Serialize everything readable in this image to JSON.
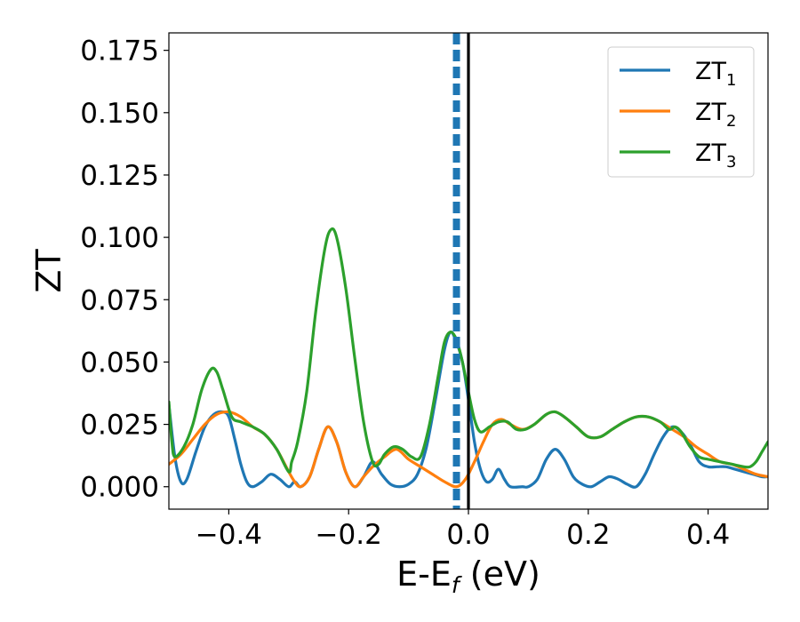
{
  "chart_data": {
    "type": "line",
    "xlabel": "E-E",
    "xlabel_subscript": "f",
    "xlabel_unit": " (eV)",
    "ylabel": "ZT",
    "xlim": [
      -0.5,
      0.5
    ],
    "ylim": [
      -0.009,
      0.182
    ],
    "xticks": [
      -0.4,
      -0.2,
      0.0,
      0.2,
      0.4
    ],
    "xtick_labels": [
      "−0.4",
      "−0.2",
      "0.0",
      "0.2",
      "0.4"
    ],
    "yticks": [
      0.0,
      0.025,
      0.05,
      0.075,
      0.1,
      0.125,
      0.15,
      0.175
    ],
    "ytick_labels": [
      "0.000",
      "0.025",
      "0.050",
      "0.075",
      "0.100",
      "0.125",
      "0.150",
      "0.175"
    ],
    "grid": false,
    "legend_position": "top-right",
    "vlines": [
      {
        "x": -0.02,
        "color": "#1f77b4",
        "style": "dashed"
      },
      {
        "x": 0.0,
        "color": "#000000",
        "style": "solid"
      }
    ],
    "series": [
      {
        "name": "ZT",
        "subscript": "1",
        "color": "#1f77b4",
        "points": [
          [
            -0.5,
            0.033
          ],
          [
            -0.49,
            0.012
          ],
          [
            -0.48,
            0.002
          ],
          [
            -0.47,
            0.003
          ],
          [
            -0.455,
            0.014
          ],
          [
            -0.44,
            0.024
          ],
          [
            -0.425,
            0.029
          ],
          [
            -0.41,
            0.03
          ],
          [
            -0.4,
            0.028
          ],
          [
            -0.39,
            0.019
          ],
          [
            -0.38,
            0.009
          ],
          [
            -0.37,
            0.002
          ],
          [
            -0.36,
            0.0
          ],
          [
            -0.345,
            0.002
          ],
          [
            -0.33,
            0.005
          ],
          [
            -0.315,
            0.003
          ],
          [
            -0.3,
            0.0
          ],
          [
            -0.29,
            0.002
          ],
          [
            -0.28,
            0.0
          ],
          [
            -0.265,
            0.004
          ],
          [
            -0.25,
            0.015
          ],
          [
            -0.235,
            0.024
          ],
          [
            -0.22,
            0.018
          ],
          [
            -0.205,
            0.006
          ],
          [
            -0.19,
            0.0
          ],
          [
            -0.175,
            0.004
          ],
          [
            -0.16,
            0.01
          ],
          [
            -0.145,
            0.005
          ],
          [
            -0.13,
            0.001
          ],
          [
            -0.115,
            0.0
          ],
          [
            -0.1,
            0.001
          ],
          [
            -0.085,
            0.005
          ],
          [
            -0.07,
            0.016
          ],
          [
            -0.055,
            0.035
          ],
          [
            -0.04,
            0.055
          ],
          [
            -0.03,
            0.062
          ],
          [
            -0.02,
            0.058
          ],
          [
            -0.01,
            0.05
          ],
          [
            0.0,
            0.035
          ],
          [
            0.01,
            0.018
          ],
          [
            0.02,
            0.007
          ],
          [
            0.03,
            0.002
          ],
          [
            0.04,
            0.003
          ],
          [
            0.05,
            0.007
          ],
          [
            0.06,
            0.003
          ],
          [
            0.07,
            0.0
          ],
          [
            0.09,
            0.0
          ],
          [
            0.1,
            0.0
          ],
          [
            0.115,
            0.003
          ],
          [
            0.13,
            0.011
          ],
          [
            0.145,
            0.015
          ],
          [
            0.16,
            0.011
          ],
          [
            0.175,
            0.004
          ],
          [
            0.19,
            0.001
          ],
          [
            0.205,
            0.0
          ],
          [
            0.22,
            0.002
          ],
          [
            0.235,
            0.004
          ],
          [
            0.25,
            0.003
          ],
          [
            0.265,
            0.001
          ],
          [
            0.28,
            0.0
          ],
          [
            0.295,
            0.005
          ],
          [
            0.31,
            0.013
          ],
          [
            0.325,
            0.02
          ],
          [
            0.34,
            0.024
          ],
          [
            0.355,
            0.022
          ],
          [
            0.37,
            0.017
          ],
          [
            0.385,
            0.01
          ],
          [
            0.4,
            0.008
          ],
          [
            0.415,
            0.008
          ],
          [
            0.43,
            0.008
          ],
          [
            0.445,
            0.007
          ],
          [
            0.46,
            0.006
          ],
          [
            0.475,
            0.005
          ],
          [
            0.49,
            0.004
          ],
          [
            0.5,
            0.004
          ]
        ]
      },
      {
        "name": "ZT",
        "subscript": "2",
        "color": "#ff7f0e",
        "points": [
          [
            -0.5,
            0.009
          ],
          [
            -0.48,
            0.013
          ],
          [
            -0.46,
            0.019
          ],
          [
            -0.44,
            0.025
          ],
          [
            -0.42,
            0.029
          ],
          [
            -0.4,
            0.03
          ],
          [
            -0.38,
            0.028
          ],
          [
            -0.36,
            0.024
          ],
          [
            -0.34,
            0.021
          ],
          [
            -0.32,
            0.015
          ],
          [
            -0.3,
            0.006
          ],
          [
            -0.29,
            0.002
          ],
          [
            -0.28,
            0.0
          ],
          [
            -0.265,
            0.004
          ],
          [
            -0.25,
            0.015
          ],
          [
            -0.235,
            0.024
          ],
          [
            -0.22,
            0.018
          ],
          [
            -0.205,
            0.006
          ],
          [
            -0.19,
            0.0
          ],
          [
            -0.175,
            0.004
          ],
          [
            -0.16,
            0.008
          ],
          [
            -0.14,
            0.012
          ],
          [
            -0.12,
            0.015
          ],
          [
            -0.1,
            0.011
          ],
          [
            -0.08,
            0.008
          ],
          [
            -0.06,
            0.005
          ],
          [
            -0.04,
            0.002
          ],
          [
            -0.02,
            0.0
          ],
          [
            -0.005,
            0.003
          ],
          [
            0.01,
            0.01
          ],
          [
            0.025,
            0.018
          ],
          [
            0.04,
            0.025
          ],
          [
            0.055,
            0.027
          ],
          [
            0.07,
            0.025
          ],
          [
            0.09,
            0.023
          ],
          [
            0.11,
            0.025
          ],
          [
            0.13,
            0.029
          ],
          [
            0.145,
            0.03
          ],
          [
            0.16,
            0.028
          ],
          [
            0.18,
            0.024
          ],
          [
            0.2,
            0.02
          ],
          [
            0.22,
            0.02
          ],
          [
            0.24,
            0.023
          ],
          [
            0.26,
            0.026
          ],
          [
            0.28,
            0.028
          ],
          [
            0.3,
            0.028
          ],
          [
            0.32,
            0.026
          ],
          [
            0.34,
            0.023
          ],
          [
            0.36,
            0.02
          ],
          [
            0.38,
            0.016
          ],
          [
            0.4,
            0.013
          ],
          [
            0.42,
            0.01
          ],
          [
            0.44,
            0.009
          ],
          [
            0.46,
            0.007
          ],
          [
            0.48,
            0.005
          ],
          [
            0.5,
            0.004
          ]
        ]
      },
      {
        "name": "ZT",
        "subscript": "3",
        "color": "#2ca02c",
        "points": [
          [
            -0.5,
            0.034
          ],
          [
            -0.495,
            0.018
          ],
          [
            -0.49,
            0.012
          ],
          [
            -0.475,
            0.016
          ],
          [
            -0.46,
            0.025
          ],
          [
            -0.445,
            0.039
          ],
          [
            -0.43,
            0.047
          ],
          [
            -0.42,
            0.046
          ],
          [
            -0.41,
            0.039
          ],
          [
            -0.395,
            0.028
          ],
          [
            -0.38,
            0.026
          ],
          [
            -0.36,
            0.024
          ],
          [
            -0.34,
            0.021
          ],
          [
            -0.32,
            0.015
          ],
          [
            -0.3,
            0.006
          ],
          [
            -0.295,
            0.01
          ],
          [
            -0.285,
            0.018
          ],
          [
            -0.27,
            0.038
          ],
          [
            -0.255,
            0.07
          ],
          [
            -0.24,
            0.095
          ],
          [
            -0.23,
            0.103
          ],
          [
            -0.22,
            0.1
          ],
          [
            -0.205,
            0.08
          ],
          [
            -0.19,
            0.052
          ],
          [
            -0.175,
            0.026
          ],
          [
            -0.16,
            0.01
          ],
          [
            -0.15,
            0.009
          ],
          [
            -0.14,
            0.013
          ],
          [
            -0.125,
            0.016
          ],
          [
            -0.11,
            0.015
          ],
          [
            -0.095,
            0.012
          ],
          [
            -0.08,
            0.012
          ],
          [
            -0.065,
            0.025
          ],
          [
            -0.05,
            0.045
          ],
          [
            -0.04,
            0.058
          ],
          [
            -0.03,
            0.062
          ],
          [
            -0.02,
            0.059
          ],
          [
            -0.01,
            0.05
          ],
          [
            0.0,
            0.038
          ],
          [
            0.01,
            0.027
          ],
          [
            0.02,
            0.022
          ],
          [
            0.035,
            0.024
          ],
          [
            0.05,
            0.026
          ],
          [
            0.065,
            0.026
          ],
          [
            0.08,
            0.023
          ],
          [
            0.095,
            0.023
          ],
          [
            0.11,
            0.025
          ],
          [
            0.13,
            0.029
          ],
          [
            0.145,
            0.03
          ],
          [
            0.16,
            0.028
          ],
          [
            0.18,
            0.024
          ],
          [
            0.2,
            0.02
          ],
          [
            0.22,
            0.02
          ],
          [
            0.24,
            0.023
          ],
          [
            0.26,
            0.026
          ],
          [
            0.28,
            0.028
          ],
          [
            0.3,
            0.028
          ],
          [
            0.32,
            0.026
          ],
          [
            0.335,
            0.023
          ],
          [
            0.345,
            0.024
          ],
          [
            0.355,
            0.022
          ],
          [
            0.37,
            0.016
          ],
          [
            0.385,
            0.012
          ],
          [
            0.4,
            0.011
          ],
          [
            0.42,
            0.01
          ],
          [
            0.44,
            0.009
          ],
          [
            0.46,
            0.008
          ],
          [
            0.47,
            0.008
          ],
          [
            0.48,
            0.01
          ],
          [
            0.49,
            0.014
          ],
          [
            0.5,
            0.018
          ]
        ]
      }
    ]
  }
}
